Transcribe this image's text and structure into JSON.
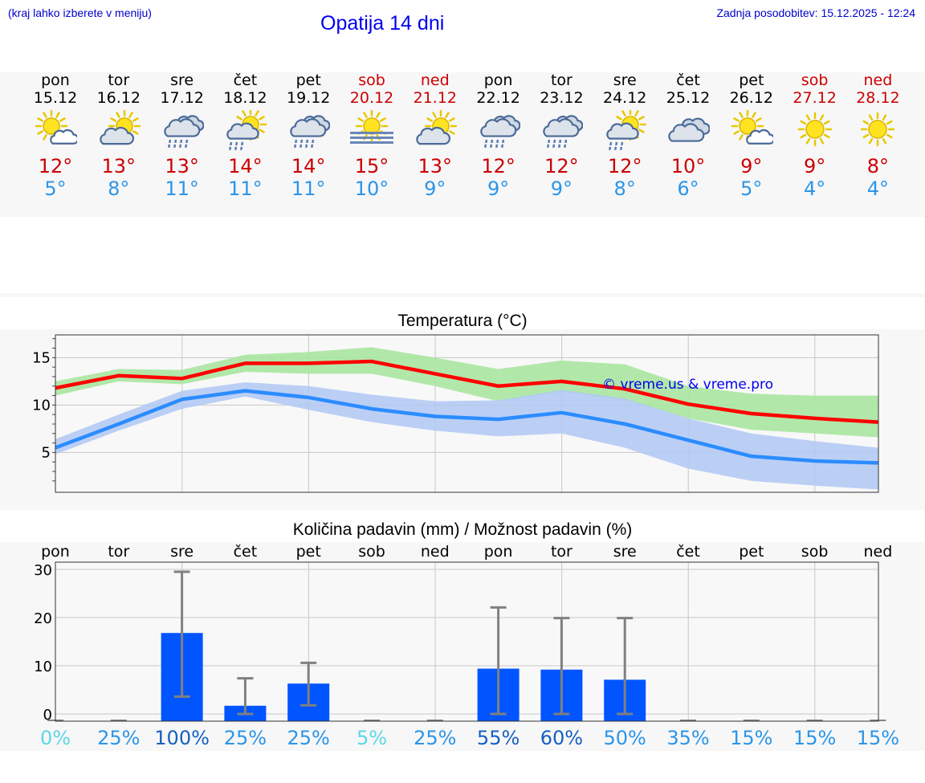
{
  "header": {
    "location_note": "(kraj lahko izberete v meniju)",
    "title": "Opatija 14 dni",
    "last_update": "Zadnja posodobitev: 15.12.2025 - 12:24"
  },
  "days": [
    {
      "name": "pon",
      "date": "15.12",
      "weekend": false,
      "icon": "sun-cloud-icon",
      "tmax": "12°",
      "tmin": "5°",
      "precip_chance": "0%"
    },
    {
      "name": "tor",
      "date": "16.12",
      "weekend": false,
      "icon": "cloud-sun-icon",
      "tmax": "13°",
      "tmin": "8°",
      "precip_chance": "25%"
    },
    {
      "name": "sre",
      "date": "17.12",
      "weekend": false,
      "icon": "cloud-rain-icon",
      "tmax": "13°",
      "tmin": "11°",
      "precip_chance": "100%"
    },
    {
      "name": "čet",
      "date": "18.12",
      "weekend": false,
      "icon": "sun-cloud-rain-icon",
      "tmax": "14°",
      "tmin": "11°",
      "precip_chance": "25%"
    },
    {
      "name": "pet",
      "date": "19.12",
      "weekend": false,
      "icon": "cloud-rain-icon",
      "tmax": "14°",
      "tmin": "11°",
      "precip_chance": "25%"
    },
    {
      "name": "sob",
      "date": "20.12",
      "weekend": true,
      "icon": "sun-fog-icon",
      "tmax": "15°",
      "tmin": "10°",
      "precip_chance": "5%"
    },
    {
      "name": "ned",
      "date": "21.12",
      "weekend": true,
      "icon": "cloud-sun-icon",
      "tmax": "13°",
      "tmin": "9°",
      "precip_chance": "25%"
    },
    {
      "name": "pon",
      "date": "22.12",
      "weekend": false,
      "icon": "cloud-rain-icon",
      "tmax": "12°",
      "tmin": "9°",
      "precip_chance": "55%"
    },
    {
      "name": "tor",
      "date": "23.12",
      "weekend": false,
      "icon": "cloud-rain-icon",
      "tmax": "12°",
      "tmin": "9°",
      "precip_chance": "60%"
    },
    {
      "name": "sre",
      "date": "24.12",
      "weekend": false,
      "icon": "sun-cloud-rain-icon",
      "tmax": "12°",
      "tmin": "8°",
      "precip_chance": "50%"
    },
    {
      "name": "čet",
      "date": "25.12",
      "weekend": false,
      "icon": "cloud-icon",
      "tmax": "10°",
      "tmin": "6°",
      "precip_chance": "35%"
    },
    {
      "name": "pet",
      "date": "26.12",
      "weekend": false,
      "icon": "sun-cloud-icon",
      "tmax": "9°",
      "tmin": "5°",
      "precip_chance": "15%"
    },
    {
      "name": "sob",
      "date": "27.12",
      "weekend": true,
      "icon": "sun-icon",
      "tmax": "9°",
      "tmin": "4°",
      "precip_chance": "15%"
    },
    {
      "name": "ned",
      "date": "28.12",
      "weekend": true,
      "icon": "sun-icon",
      "tmax": "8°",
      "tmin": "4°",
      "precip_chance": "15%"
    }
  ],
  "colors": {
    "tmax": "#cc0000",
    "tmin": "#2b95e8",
    "max_line": "#ff0000",
    "min_line": "#2b8cff",
    "max_band": "#a8e6a0",
    "min_band": "#b0c8f4",
    "bar": "#0055ff",
    "whisker": "#808080",
    "title_blue": "#0000ee"
  },
  "chart_data": [
    {
      "type": "line",
      "title": "Temperatura (°C)",
      "watermark": "© vreme.us & vreme.pro",
      "ylim": [
        0.8,
        17.4
      ],
      "yticks": [
        5,
        10,
        15
      ],
      "grid": true,
      "x": [
        0,
        1,
        2,
        3,
        4,
        5,
        6,
        7,
        8,
        9,
        10,
        11,
        12,
        13
      ],
      "series": [
        {
          "name": "max",
          "values": [
            11.8,
            13.1,
            12.8,
            14.4,
            14.4,
            14.6,
            13.3,
            12.0,
            12.5,
            11.7,
            10.1,
            9.1,
            8.6,
            8.2
          ],
          "band_low": [
            11.0,
            12.5,
            12.2,
            13.5,
            13.3,
            13.3,
            12.0,
            10.4,
            11.4,
            10.5,
            8.6,
            7.4,
            7.0,
            6.6
          ],
          "band_high": [
            12.5,
            13.8,
            13.7,
            15.3,
            15.6,
            16.1,
            15.0,
            13.8,
            14.7,
            14.3,
            12.0,
            11.2,
            11.0,
            11.0
          ]
        },
        {
          "name": "min",
          "values": [
            5.5,
            8.0,
            10.6,
            11.5,
            10.8,
            9.6,
            8.8,
            8.5,
            9.2,
            8.0,
            6.3,
            4.6,
            4.1,
            3.9
          ],
          "band_low": [
            4.8,
            7.3,
            9.6,
            10.9,
            9.5,
            8.2,
            7.3,
            6.7,
            7.0,
            5.5,
            3.3,
            2.0,
            1.5,
            1.1
          ],
          "band_high": [
            6.4,
            9.0,
            11.5,
            12.4,
            12.0,
            11.1,
            10.4,
            10.5,
            11.6,
            10.7,
            8.6,
            7.0,
            6.2,
            5.5
          ]
        }
      ]
    },
    {
      "type": "bar",
      "title": "Količina padavin (mm) / Možnost padavin (%)",
      "categories": [
        "pon",
        "tor",
        "sre",
        "čet",
        "pet",
        "sob",
        "ned",
        "pon",
        "tor",
        "sre",
        "čet",
        "pet",
        "sob",
        "ned"
      ],
      "values": [
        0,
        0,
        16.8,
        1.7,
        6.3,
        0,
        0,
        9.4,
        9.2,
        7.1,
        0,
        0,
        0,
        0
      ],
      "error_low": [
        0,
        0,
        3.6,
        0,
        1.8,
        0,
        0,
        0,
        0,
        0,
        0,
        0,
        0,
        0
      ],
      "error_high": [
        0,
        0,
        29.5,
        7.4,
        10.6,
        0,
        0,
        22.1,
        19.9,
        19.9,
        0,
        0,
        0,
        0
      ],
      "ylim": [
        -1.5,
        31.5
      ],
      "yticks": [
        0,
        10,
        20,
        30
      ],
      "chance_labels": [
        "0%",
        "25%",
        "100%",
        "25%",
        "25%",
        "5%",
        "25%",
        "55%",
        "60%",
        "50%",
        "35%",
        "15%",
        "15%",
        "15%"
      ]
    }
  ]
}
